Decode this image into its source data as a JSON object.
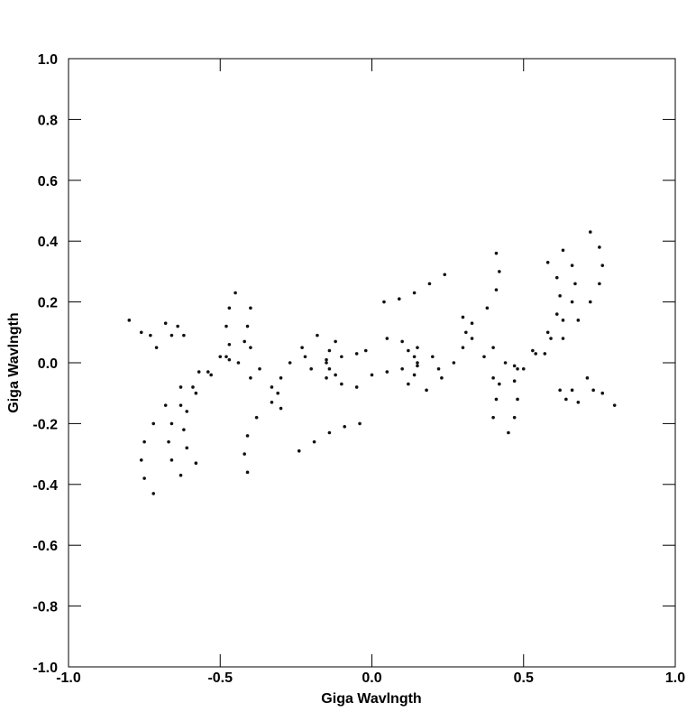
{
  "chart_data": {
    "type": "scatter",
    "xlabel": "Giga Wavlngth",
    "ylabel": "Giga Wavlngth",
    "xlim": [
      -1,
      1
    ],
    "ylim": [
      -1,
      1
    ],
    "xticks": [
      {
        "value": -1,
        "label": "-1.0"
      },
      -0.5,
      {
        "value": 0,
        "label": "0.0"
      },
      0.5,
      {
        "value": 1,
        "label": "1.0"
      }
    ],
    "yticks": [
      {
        "value": -1,
        "label": "-1.0"
      },
      -0.8,
      -0.6,
      -0.4,
      -0.2,
      {
        "value": 0,
        "label": "0.0"
      },
      0.2,
      0.4,
      0.6,
      0.8,
      {
        "value": 1,
        "label": "1.0"
      }
    ],
    "color": "#111111",
    "x": [
      0.72,
      0.75,
      0.76,
      0.75,
      0.72,
      0.68,
      0.63,
      0.57,
      0.5,
      0.63,
      0.66,
      0.67,
      0.66,
      0.63,
      0.59,
      0.54,
      0.48,
      0.42,
      0.58,
      0.61,
      0.62,
      0.61,
      0.58,
      0.53,
      0.47,
      0.41,
      0.42,
      0.41,
      0.38,
      0.33,
      0.24,
      0.19,
      0.14,
      0.09,
      0.04,
      0.3,
      0.31,
      0.3,
      0.27,
      0.23,
      0.18,
      0.12,
      0.14,
      0.15,
      0.14,
      0.12,
      0.4,
      0.44,
      0.47,
      0.48,
      0.47,
      0.45,
      0.33,
      0.37,
      0.4,
      0.41,
      0.4,
      0.62,
      0.64,
      0.66,
      0.68,
      0.71,
      0.73,
      0.76,
      0.8,
      0.05,
      0.1,
      0.15,
      0.2,
      0.22,
      0,
      0.05,
      0.1,
      0.15,
      -0.72,
      -0.75,
      -0.76,
      -0.75,
      -0.72,
      -0.68,
      -0.63,
      -0.57,
      -0.5,
      -0.63,
      -0.66,
      -0.67,
      -0.66,
      -0.63,
      -0.59,
      -0.54,
      -0.48,
      -0.42,
      -0.58,
      -0.61,
      -0.62,
      -0.61,
      -0.58,
      -0.53,
      -0.47,
      -0.41,
      -0.42,
      -0.41,
      -0.38,
      -0.33,
      -0.24,
      -0.19,
      -0.14,
      -0.09,
      -0.04,
      -0.3,
      -0.31,
      -0.3,
      -0.27,
      -0.23,
      -0.18,
      -0.12,
      -0.14,
      -0.15,
      -0.14,
      -0.12,
      -0.4,
      -0.44,
      -0.47,
      -0.48,
      -0.47,
      -0.45,
      -0.33,
      -0.37,
      -0.4,
      -0.41,
      -0.4,
      -0.62,
      -0.64,
      -0.66,
      -0.68,
      -0.71,
      -0.73,
      -0.76,
      -0.8,
      -0.05,
      -0.1,
      -0.15,
      -0.2,
      -0.22,
      -0.02,
      -0.05,
      -0.1,
      -0.15
    ],
    "y": [
      0.43,
      0.38,
      0.32,
      0.26,
      0.2,
      0.14,
      0.08,
      0.03,
      -0.02,
      0.37,
      0.32,
      0.26,
      0.2,
      0.14,
      0.08,
      0.03,
      -0.02,
      -0.07,
      0.33,
      0.28,
      0.22,
      0.16,
      0.1,
      0.04,
      -0.01,
      0.36,
      0.3,
      0.24,
      0.18,
      0.13,
      0.29,
      0.26,
      0.23,
      0.21,
      0.2,
      0.15,
      0.1,
      0.05,
      0,
      -0.05,
      -0.09,
      0.04,
      0.02,
      -0.01,
      -0.04,
      -0.07,
      0.05,
      0,
      -0.06,
      -0.12,
      -0.18,
      -0.23,
      0.08,
      0.02,
      -0.05,
      -0.12,
      -0.18,
      -0.09,
      -0.12,
      -0.09,
      -0.13,
      -0.05,
      -0.09,
      -0.1,
      -0.14,
      0.08,
      0.07,
      0.05,
      0.02,
      -0.02,
      -0.04,
      -0.03,
      -0.02,
      0,
      -0.43,
      -0.38,
      -0.32,
      -0.26,
      -0.2,
      -0.14,
      -0.08,
      -0.03,
      0.02,
      -0.37,
      -0.32,
      -0.26,
      -0.2,
      -0.14,
      -0.08,
      -0.03,
      0.02,
      0.07,
      -0.33,
      -0.28,
      -0.22,
      -0.16,
      -0.1,
      -0.04,
      0.01,
      -0.36,
      -0.3,
      -0.24,
      -0.18,
      -0.13,
      -0.29,
      -0.26,
      -0.23,
      -0.21,
      -0.2,
      -0.15,
      -0.1,
      -0.05,
      0,
      0.05,
      0.09,
      -0.04,
      -0.02,
      0.01,
      0.04,
      0.07,
      -0.05,
      0,
      0.06,
      0.12,
      0.18,
      0.23,
      -0.08,
      -0.02,
      0.05,
      0.12,
      0.18,
      0.09,
      0.12,
      0.09,
      0.13,
      0.05,
      0.09,
      0.1,
      0.14,
      -0.08,
      -0.07,
      -0.05,
      -0.02,
      0.02,
      0.04,
      0.03,
      0.02,
      0
    ]
  }
}
